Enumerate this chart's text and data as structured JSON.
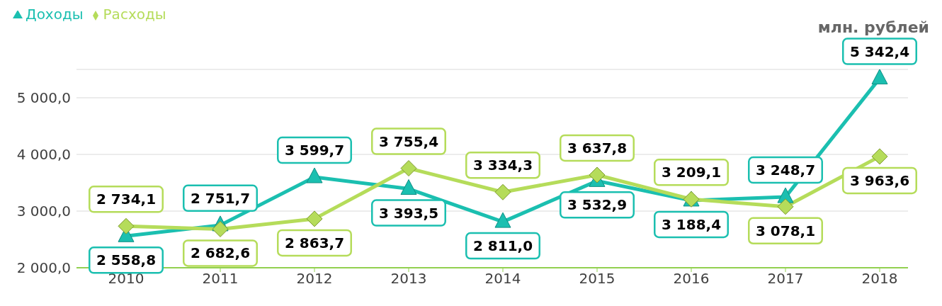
{
  "chart_data": {
    "type": "line",
    "annotations": [
      "млн. рублей"
    ],
    "categories": [
      "2010",
      "2011",
      "2012",
      "2013",
      "2014",
      "2015",
      "2016",
      "2017",
      "2018"
    ],
    "series": [
      {
        "name": "Доходы",
        "color": "#1bbfb0",
        "marker": "triangle",
        "values": [
          2558.8,
          2751.7,
          3599.7,
          3393.5,
          2811.0,
          3532.9,
          3188.4,
          3248.7,
          5342.4
        ],
        "value_labels": [
          "2 558,8",
          "2 751,7",
          "3 599,7",
          "3 393,5",
          "2 811,0",
          "3 532,9",
          "3 188,4",
          "3 248,7",
          "5 342,4"
        ]
      },
      {
        "name": "Расходы",
        "color": "#b5dc5a",
        "marker": "diamond",
        "values": [
          2734.1,
          2682.6,
          2863.7,
          3755.4,
          3334.3,
          3637.8,
          3209.1,
          3078.1,
          3963.6
        ],
        "value_labels": [
          "2 734,1",
          "2 682,6",
          "2 863,7",
          "3 755,4",
          "3 334,3",
          "3 637,8",
          "3 209,1",
          "3 078,1",
          "3 963,6"
        ]
      }
    ],
    "ylim": [
      2000,
      5500
    ],
    "yticks": [
      {
        "value": 2000,
        "label": "2 000,0"
      },
      {
        "value": 3000,
        "label": "3 000,0"
      },
      {
        "value": 4000,
        "label": "4 000,0"
      },
      {
        "value": 5000,
        "label": "5 000,0"
      }
    ],
    "grid": "y",
    "legend": "top left"
  }
}
